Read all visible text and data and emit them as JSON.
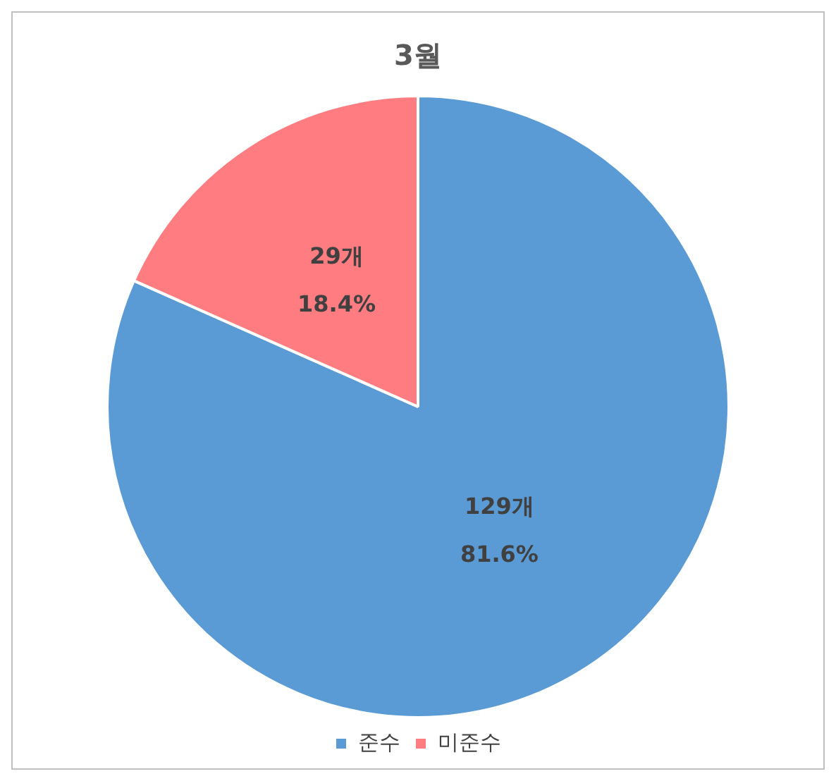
{
  "chart_data": {
    "type": "pie",
    "title": "3월",
    "categories": [
      "준수",
      "미준수"
    ],
    "values": [
      129,
      29
    ],
    "colors": [
      "#5b9bd5",
      "#ff7c80"
    ],
    "value_labels": [
      "129개\n81.6%",
      "29개\n18.4%"
    ],
    "legend": "bottom"
  }
}
